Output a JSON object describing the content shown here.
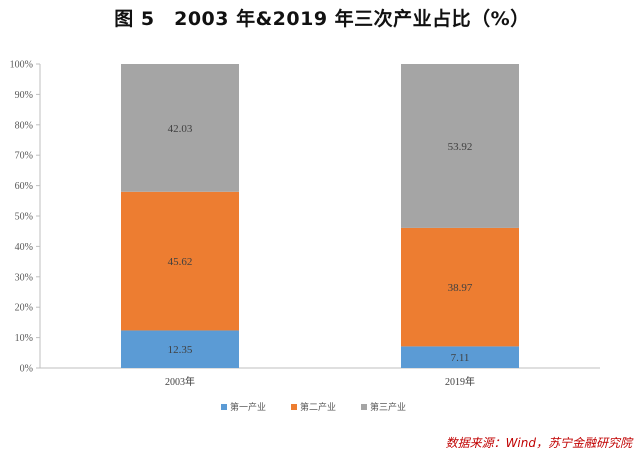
{
  "title": "图 5　2003 年&2019 年三次产业占比（%）",
  "source": "数据来源：Wind，苏宁金融研究院",
  "chart_data": {
    "type": "bar",
    "stacked": "percent",
    "categories": [
      "2003年",
      "2019年"
    ],
    "series": [
      {
        "name": "第一产业",
        "color": "#5b9bd5",
        "values": [
          12.35,
          7.11
        ]
      },
      {
        "name": "第二产业",
        "color": "#ed7d31",
        "values": [
          45.62,
          38.97
        ]
      },
      {
        "name": "第三产业",
        "color": "#a5a5a5",
        "values": [
          42.03,
          53.92
        ]
      }
    ],
    "ylim": [
      0,
      100
    ],
    "yticks": [
      "0%",
      "10%",
      "20%",
      "30%",
      "40%",
      "50%",
      "60%",
      "70%",
      "80%",
      "90%",
      "100%"
    ],
    "legend": "bottom",
    "grid": false
  }
}
